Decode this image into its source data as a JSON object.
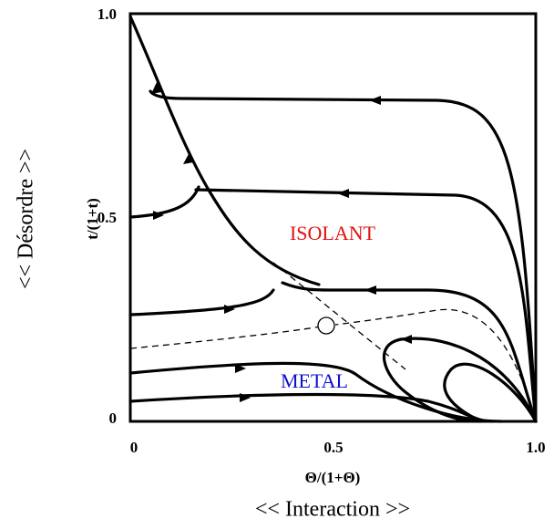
{
  "axes": {
    "y_ticks": [
      "1.0",
      "0.5",
      "0"
    ],
    "x_ticks": [
      "0",
      "0.5",
      "1.0"
    ],
    "x_label": "Θ/(1+Θ)",
    "x_title": "<< Interaction >>",
    "y_label": "t/(1+t)",
    "y_title": "<< Désordre >>"
  },
  "regions": {
    "insulator": "ISOLANT",
    "metal": "METAL"
  }
}
